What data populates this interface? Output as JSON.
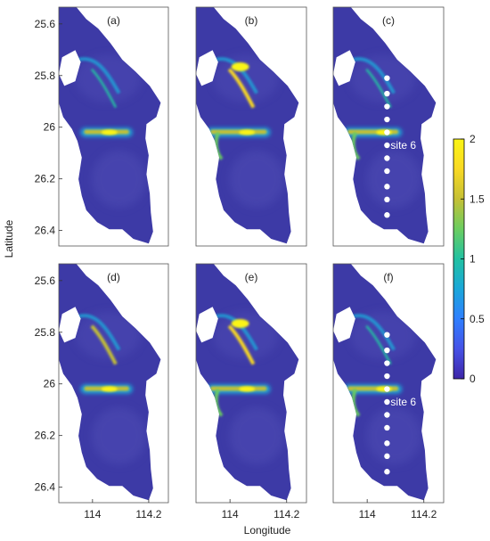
{
  "figure": {
    "ylabel": "Latitude",
    "xlabel": "Longitude"
  },
  "colorbar": {
    "ticks": [
      "2",
      "1.5",
      "1",
      "0.5",
      "0"
    ],
    "colors": [
      "#3e26a8",
      "#4652e6",
      "#2f7fff",
      "#1aa7d9",
      "#21c1a2",
      "#6bcd60",
      "#c5c035",
      "#f9d924",
      "#fbf514"
    ]
  },
  "colors": {
    "background": "#3d3aa6",
    "background_light": "#5a58bd",
    "sites": "#ffffff"
  },
  "chart_data": [
    {
      "type": "heatmap",
      "panel": "(a)",
      "ylabel": "Latitude",
      "yticks": [
        "25.6",
        "25.8",
        "26",
        "26.2",
        "26.4"
      ],
      "xticks": [],
      "features": [
        {
          "lat": 26.02,
          "lon_range": [
            113.97,
            114.13
          ],
          "value": 1.8
        }
      ]
    },
    {
      "type": "heatmap",
      "panel": "(b)",
      "yticks": [],
      "xticks": [],
      "features": [
        {
          "lat": 25.76,
          "value": 2.0
        },
        {
          "lat": 26.02,
          "lon_range": [
            113.93,
            114.13
          ],
          "value": 1.9
        }
      ]
    },
    {
      "type": "heatmap",
      "panel": "(c)",
      "yticks": [],
      "xticks": [],
      "site_label": "site 6",
      "sites": {
        "lon": 114.07,
        "lat": [
          25.81,
          25.87,
          25.92,
          25.97,
          26.02,
          26.07,
          26.12,
          26.17,
          26.23,
          26.28,
          26.34
        ]
      },
      "features": [
        {
          "lat": 26.02,
          "lon_range": [
            113.93,
            114.11
          ],
          "value": 2.0
        }
      ]
    },
    {
      "type": "heatmap",
      "panel": "(d)",
      "ylabel": "Latitude",
      "yticks": [
        "25.6",
        "25.8",
        "26",
        "26.2",
        "26.4"
      ],
      "xticks": [
        "114",
        "114.2"
      ],
      "features": [
        {
          "lat": 25.75,
          "value": 1.8
        },
        {
          "lat": 26.02,
          "lon_range": [
            113.97,
            114.13
          ],
          "value": 1.9
        }
      ]
    },
    {
      "type": "heatmap",
      "panel": "(e)",
      "yticks": [],
      "xticks": [
        "114",
        "114.2"
      ],
      "xlabel": "Longitude",
      "features": [
        {
          "lat": 25.75,
          "value": 2.0
        },
        {
          "lat": 26.02,
          "lon_range": [
            113.93,
            114.13
          ],
          "value": 2.0
        }
      ]
    },
    {
      "type": "heatmap",
      "panel": "(f)",
      "yticks": [],
      "xticks": [
        "114",
        "114.2"
      ],
      "site_label": "site 6",
      "sites": {
        "lon": 114.07,
        "lat": [
          25.81,
          25.87,
          25.92,
          25.97,
          26.02,
          26.07,
          26.12,
          26.17,
          26.23,
          26.28,
          26.34
        ]
      },
      "features": [
        {
          "lat": 26.02,
          "lon_range": [
            113.93,
            114.11
          ],
          "value": 2.0
        }
      ]
    }
  ]
}
